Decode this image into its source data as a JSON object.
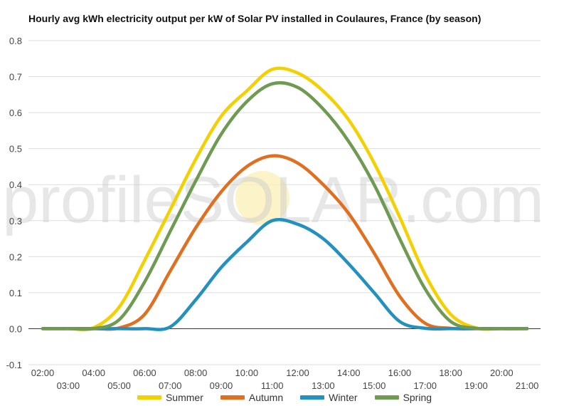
{
  "chart_data": {
    "type": "line",
    "title": "Hourly avg kWh electricity output per kW of Solar PV installed in Coulaures, France (by season)",
    "xlabel": "",
    "ylabel": "",
    "ylim": [
      -0.1,
      0.8
    ],
    "yticks": [
      "-0.1",
      "0.0",
      "0.1",
      "0.2",
      "0.3",
      "0.4",
      "0.5",
      "0.6",
      "0.7",
      "0.8"
    ],
    "xticks_top": [
      "02:00",
      "04:00",
      "06:00",
      "08:00",
      "10:00",
      "12:00",
      "14:00",
      "16:00",
      "18:00",
      "20:00"
    ],
    "xticks_bottom": [
      "03:00",
      "05:00",
      "07:00",
      "09:00",
      "11:00",
      "13:00",
      "15:00",
      "17:00",
      "19:00",
      "21:00"
    ],
    "x": [
      "02:00",
      "03:00",
      "04:00",
      "05:00",
      "06:00",
      "07:00",
      "08:00",
      "09:00",
      "10:00",
      "11:00",
      "12:00",
      "13:00",
      "14:00",
      "15:00",
      "16:00",
      "17:00",
      "18:00",
      "19:00",
      "20:00",
      "21:00"
    ],
    "grid": true,
    "legend_position": "bottom",
    "watermark": "profileSOLAR.com",
    "series": [
      {
        "name": "Summer",
        "color": "#f5d000",
        "values": [
          0,
          0,
          0.003,
          0.06,
          0.19,
          0.33,
          0.47,
          0.59,
          0.66,
          0.72,
          0.71,
          0.66,
          0.58,
          0.46,
          0.31,
          0.15,
          0.04,
          0.002,
          0,
          0
        ]
      },
      {
        "name": "Autumn",
        "color": "#e07020",
        "values": [
          0,
          0,
          0,
          0.002,
          0.04,
          0.16,
          0.28,
          0.38,
          0.45,
          0.48,
          0.46,
          0.4,
          0.32,
          0.21,
          0.09,
          0.015,
          0.001,
          0,
          0,
          0
        ]
      },
      {
        "name": "Winter",
        "color": "#2390bf",
        "values": [
          0,
          0,
          0,
          0,
          0,
          0.005,
          0.08,
          0.17,
          0.24,
          0.3,
          0.29,
          0.25,
          0.18,
          0.1,
          0.02,
          0.001,
          0,
          0,
          0,
          0
        ]
      },
      {
        "name": "Spring",
        "color": "#6e9a52",
        "values": [
          0,
          0,
          0,
          0.025,
          0.13,
          0.27,
          0.41,
          0.54,
          0.63,
          0.68,
          0.67,
          0.61,
          0.52,
          0.4,
          0.25,
          0.11,
          0.02,
          0.001,
          0,
          0
        ]
      }
    ]
  }
}
